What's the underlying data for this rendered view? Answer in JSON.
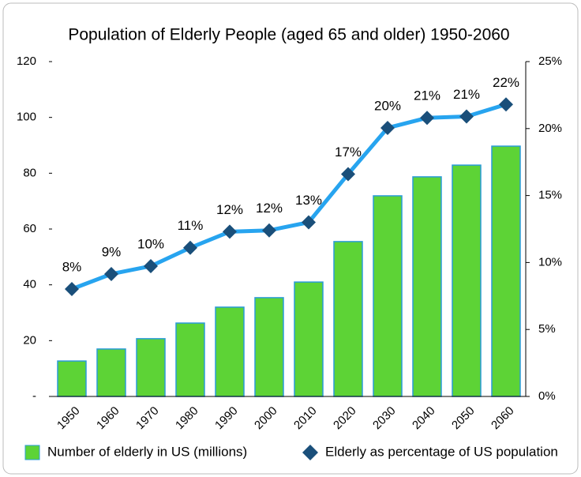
{
  "chart_data": {
    "type": "bar",
    "title": "Population of Elderly People (aged 65 and older) 1950-2060",
    "categories": [
      "1950",
      "1960",
      "1970",
      "1980",
      "1990",
      "2000",
      "2010",
      "2020",
      "2030",
      "2040",
      "2050",
      "2060"
    ],
    "series": [
      {
        "name": "Number of elderly in US (millions)",
        "type": "bar",
        "color": "#5dd336",
        "edge": "#2a9bd8",
        "values": [
          12.7,
          17,
          20.7,
          26.3,
          32,
          35.4,
          41,
          55.5,
          71.9,
          78.7,
          82.9,
          89.7
        ]
      },
      {
        "name": "Elderly as percentage of US population",
        "type": "line",
        "axis": "y2",
        "color": "#27a4ef",
        "marker_color": "#1a4f7a",
        "values": [
          8.02,
          9.14,
          9.73,
          11.1,
          12.3,
          12.4,
          13.0,
          16.6,
          20.05,
          20.8,
          20.9,
          21.8
        ],
        "value_labels": [
          "8%",
          "9%",
          "10%",
          "11%",
          "12%",
          "12%",
          "13%",
          "17%",
          "20%",
          "21%",
          "21%",
          "22%"
        ]
      }
    ],
    "ylim": [
      0,
      120
    ],
    "yticks": [
      {
        "value": 0,
        "label": "-"
      },
      20,
      40,
      60,
      80,
      100,
      120
    ],
    "y2lim": [
      0,
      25
    ],
    "y2ticks": [
      {
        "value": 0,
        "label": "0%"
      },
      {
        "value": 5,
        "label": "5%"
      },
      {
        "value": 10,
        "label": "10%"
      },
      {
        "value": 15,
        "label": "15%"
      },
      {
        "value": 20,
        "label": "20%"
      },
      {
        "value": 25,
        "label": "25%"
      }
    ],
    "legend": "bottom"
  }
}
